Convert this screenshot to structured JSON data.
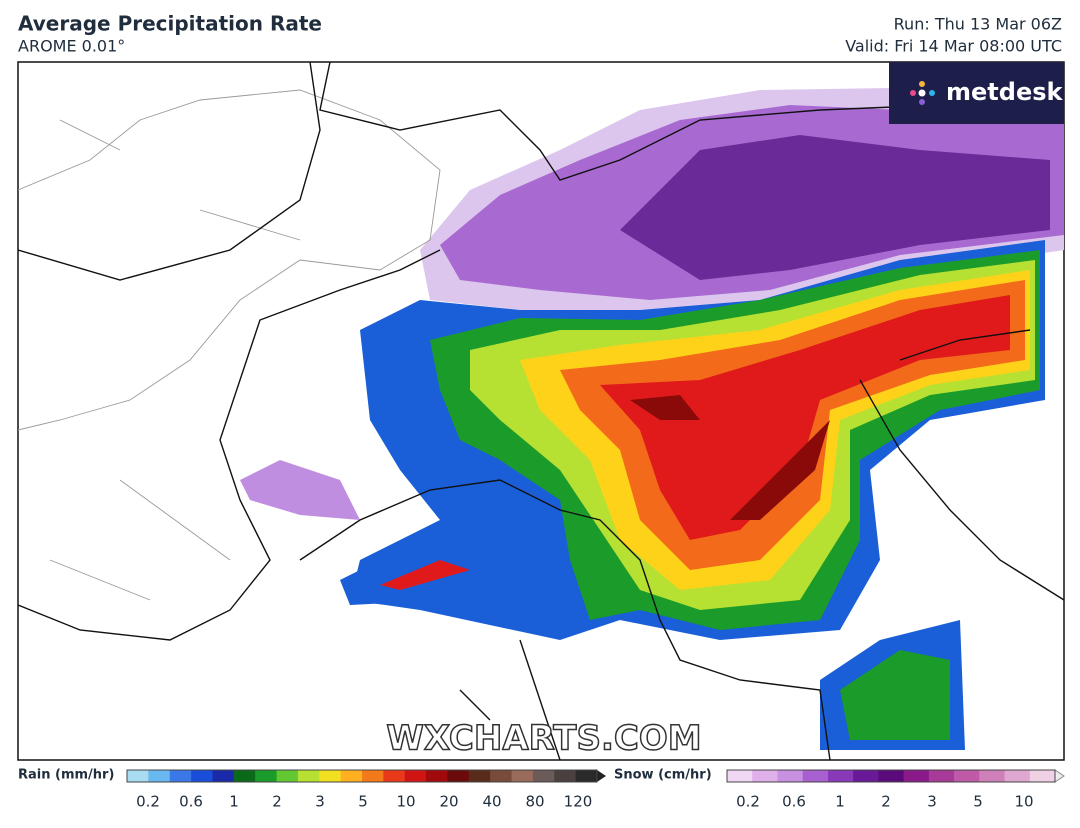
{
  "header": {
    "title": "Average Precipitation Rate",
    "subtitle": "AROME 0.01°",
    "run": "Run: Thu 13 Mar 06Z",
    "valid": "Valid: Fri 14 Mar 08:00 UTC"
  },
  "logo": "metdesk",
  "watermark": "WXCHARTS.COM",
  "legend": {
    "rain": {
      "label": "Rain (mm/hr)",
      "ticks": [
        0.2,
        0.6,
        1,
        2,
        3,
        5,
        10,
        20,
        40,
        80,
        120
      ]
    },
    "snow": {
      "label": "Snow (cm/hr)",
      "ticks": [
        0.2,
        0.6,
        1,
        2,
        3,
        5,
        10
      ]
    }
  }
}
